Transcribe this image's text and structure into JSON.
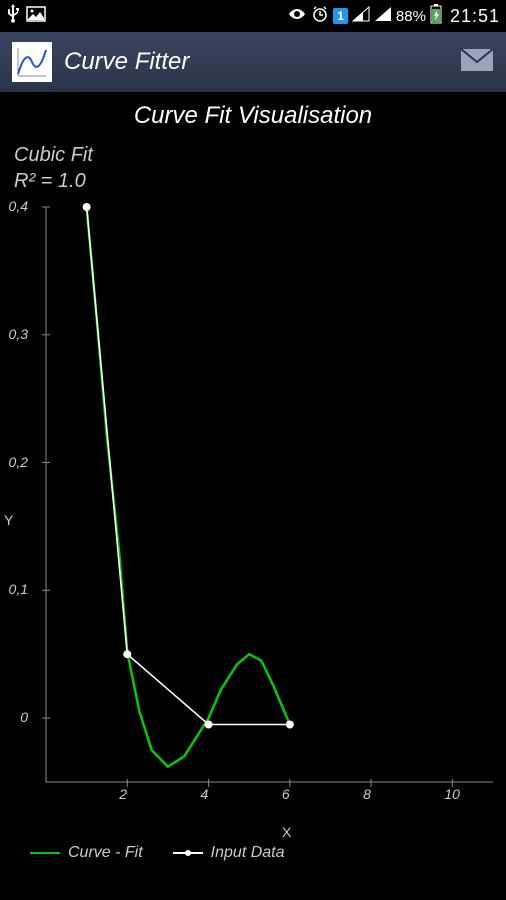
{
  "status": {
    "battery": "88%",
    "time": "21:51",
    "calendar_badge": "1"
  },
  "titlebar": {
    "app_name": "Curve Fitter"
  },
  "chart": {
    "title": "Curve Fit Visualisation",
    "fit_name": "Cubic Fit",
    "r2_label": "R² = 1.0",
    "xlabel": "X",
    "ylabel": "Y",
    "type": "line+scatter",
    "background_color": "#000000",
    "axis_color": "#888888",
    "text_color": "#cccccc",
    "xlim": [
      0,
      11
    ],
    "ylim": [
      -0.05,
      0.4
    ],
    "xticks": [
      2,
      4,
      6,
      8,
      10
    ],
    "yticks": [
      0,
      0.1,
      0.2,
      0.3,
      0.4
    ],
    "ytick_labels": [
      "0",
      "0,1",
      "0,2",
      "0,3",
      "0,4"
    ],
    "curve_fit": {
      "color": "#00cc00",
      "line_width": 2.5,
      "points": [
        [
          1,
          0.4
        ],
        [
          1.2,
          0.33
        ],
        [
          1.5,
          0.22
        ],
        [
          1.8,
          0.13
        ],
        [
          2.0,
          0.052
        ],
        [
          2.3,
          0.005
        ],
        [
          2.6,
          -0.025
        ],
        [
          3.0,
          -0.038
        ],
        [
          3.4,
          -0.03
        ],
        [
          3.7,
          -0.015
        ],
        [
          4.0,
          0.0
        ],
        [
          4.3,
          0.022
        ],
        [
          4.7,
          0.042
        ],
        [
          5.0,
          0.05
        ],
        [
          5.3,
          0.045
        ],
        [
          5.6,
          0.025
        ],
        [
          6.0,
          -0.005
        ]
      ]
    },
    "input_data": {
      "color": "#ffffff",
      "line_width": 1.5,
      "marker_size": 4,
      "points": [
        [
          1,
          0.4
        ],
        [
          2,
          0.05
        ],
        [
          4,
          -0.005
        ],
        [
          6,
          -0.005
        ]
      ]
    },
    "legend": {
      "curve_label": "Curve - Fit",
      "data_label": "Input Data"
    }
  }
}
